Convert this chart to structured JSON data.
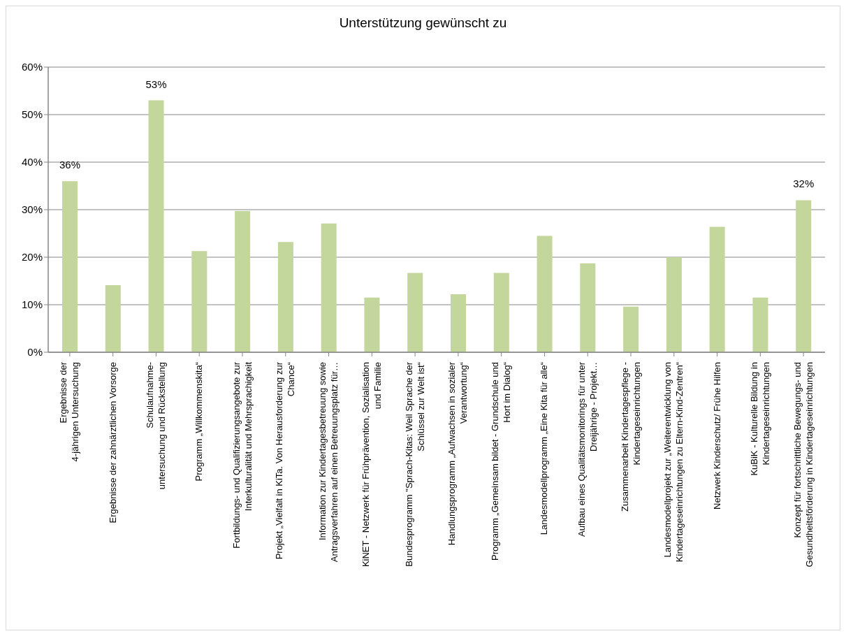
{
  "chart_data": {
    "type": "bar",
    "title": "Unterstützung gewünscht zu",
    "categories": [
      "Ergebnisse der\n4-jährigen Untersuchung",
      "Ergebnisse der zahnärztlichen Vorsorge",
      "Schulaufnahme-\nuntersuchung und Rückstellung",
      "Programm „Willkommenskita“",
      "Fortbildungs- und Qualifizierungsangebote zur\nInterkulturalität und Mehrsprachigkeit",
      "Projekt „Vielfalt in KiTa. Von Herausforderung zur\nChance“",
      "Information zur Kindertagesbetreuung sowie\nAntragsverfahren auf einen Betreuungsplatz für…",
      "KiNET - Netzwerk für Frühprävention, Sozialisation\nund Familie",
      "Bundesprogramm \"Sprach-Kitas: Weil Sprache der\nSchlüssel zur Welt ist“",
      "Handlungsprogramm „Aufwachsen in sozialer\nVerantwortung“",
      "Programm „Gemeinsam bildet - Grundschule und\nHort im Dialog“",
      "Landesmodellprogramm „Eine Kita für alle“",
      "Aufbau eines Qualitätsmonitorings für unter\nDreijährige - Projekt…",
      "Zusammenarbeit Kindertagespflege -\nKindertageseinrichtungen",
      "Landesmodellprojekt zur „Weiterentwicklung von\nKindertageseinrichtungen zu Eltern-Kind-Zentren“",
      "Netzwerk Kinderschutz/ Frühe Hilfen",
      "KuBiK - Kulturelle Bildung in\nKindertageseinrichtungen",
      "Konzept für fortschrittliche Bewegungs- und\nGesundheitsförderung in Kindertageseinrichtungen"
    ],
    "values": [
      36,
      14.1,
      53,
      21.3,
      29.7,
      23.2,
      27.1,
      11.5,
      16.7,
      12.2,
      16.7,
      24.5,
      18.7,
      9.6,
      20,
      26.4,
      11.5,
      32
    ],
    "value_labels": [
      "36%",
      null,
      "53%",
      null,
      null,
      null,
      null,
      null,
      null,
      null,
      null,
      null,
      null,
      null,
      null,
      null,
      null,
      "32%"
    ],
    "color": "#c3d69b",
    "ylim": [
      0,
      60
    ],
    "yticks": [
      {
        "value": 0,
        "label": "0%"
      },
      {
        "value": 10,
        "label": "10%"
      },
      {
        "value": 20,
        "label": "20%"
      },
      {
        "value": 30,
        "label": "30%"
      },
      {
        "value": 40,
        "label": "40%"
      },
      {
        "value": 50,
        "label": "50%"
      },
      {
        "value": 60,
        "label": "60%"
      }
    ],
    "grid": "y"
  }
}
